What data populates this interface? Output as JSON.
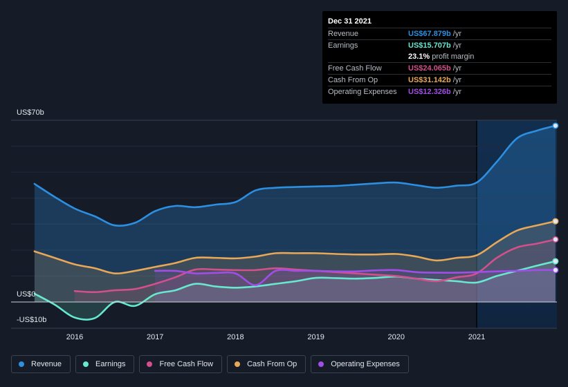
{
  "tooltip": {
    "date": "Dec 31 2021",
    "rows": [
      {
        "label": "Revenue",
        "value": "US$67.879b",
        "unit": "/yr",
        "color": "#2d8fe0"
      },
      {
        "label": "Earnings",
        "value": "US$15.707b",
        "unit": "/yr",
        "color": "#67e8cf"
      },
      {
        "label": "",
        "value": "23.1%",
        "unit": "profit margin",
        "color": "#ffffff"
      },
      {
        "label": "Free Cash Flow",
        "value": "US$24.065b",
        "unit": "/yr",
        "color": "#d2508c"
      },
      {
        "label": "Cash From Op",
        "value": "US$31.142b",
        "unit": "/yr",
        "color": "#e8a857"
      },
      {
        "label": "Operating Expenses",
        "value": "US$12.326b",
        "unit": "/yr",
        "color": "#a14ee8"
      }
    ]
  },
  "chart_data": {
    "type": "area",
    "title": "",
    "ylim": [
      -10,
      70
    ],
    "xlim": [
      2015.5,
      2022.0
    ],
    "y_tick_labels": [
      {
        "value": 70,
        "label": "US$70b"
      },
      {
        "value": 0,
        "label": "US$0"
      },
      {
        "value": -10,
        "label": "-US$10b"
      }
    ],
    "x_tick_labels": [
      {
        "value": 2016,
        "label": "2016"
      },
      {
        "value": 2017,
        "label": "2017"
      },
      {
        "value": 2018,
        "label": "2018"
      },
      {
        "value": 2019,
        "label": "2019"
      },
      {
        "value": 2020,
        "label": "2020"
      },
      {
        "value": 2021,
        "label": "2021"
      }
    ],
    "highlight_start": 2021.0,
    "series": [
      {
        "name": "Revenue",
        "color": "#2d8fe0",
        "points": [
          [
            2015.5,
            45.5
          ],
          [
            2015.75,
            40.5
          ],
          [
            2016.0,
            36.0
          ],
          [
            2016.25,
            33.0
          ],
          [
            2016.5,
            29.5
          ],
          [
            2016.75,
            30.5
          ],
          [
            2017.0,
            35.0
          ],
          [
            2017.25,
            37.0
          ],
          [
            2017.5,
            36.5
          ],
          [
            2017.75,
            37.5
          ],
          [
            2018.0,
            38.5
          ],
          [
            2018.25,
            43.0
          ],
          [
            2018.5,
            44.0
          ],
          [
            2018.75,
            44.3
          ],
          [
            2019.0,
            44.5
          ],
          [
            2019.25,
            44.7
          ],
          [
            2019.5,
            45.2
          ],
          [
            2019.75,
            45.7
          ],
          [
            2020.0,
            46.0
          ],
          [
            2020.25,
            45.0
          ],
          [
            2020.5,
            44.0
          ],
          [
            2020.75,
            44.8
          ],
          [
            2021.0,
            46.0
          ],
          [
            2021.25,
            54.0
          ],
          [
            2021.5,
            63.0
          ],
          [
            2021.75,
            66.0
          ],
          [
            2021.98,
            67.9
          ]
        ]
      },
      {
        "name": "Earnings",
        "color": "#67e8cf",
        "points": [
          [
            2015.5,
            3.2
          ],
          [
            2015.75,
            -1.0
          ],
          [
            2016.0,
            -6.0
          ],
          [
            2016.25,
            -6.2
          ],
          [
            2016.5,
            0.0
          ],
          [
            2016.75,
            -1.5
          ],
          [
            2017.0,
            3.0
          ],
          [
            2017.25,
            4.5
          ],
          [
            2017.5,
            7.0
          ],
          [
            2017.75,
            6.0
          ],
          [
            2018.0,
            5.5
          ],
          [
            2018.25,
            6.0
          ],
          [
            2018.5,
            7.0
          ],
          [
            2018.75,
            8.0
          ],
          [
            2019.0,
            9.3
          ],
          [
            2019.25,
            9.2
          ],
          [
            2019.5,
            9.0
          ],
          [
            2019.75,
            9.3
          ],
          [
            2020.0,
            9.8
          ],
          [
            2020.25,
            9.0
          ],
          [
            2020.5,
            8.5
          ],
          [
            2020.75,
            8.0
          ],
          [
            2021.0,
            7.5
          ],
          [
            2021.25,
            10.0
          ],
          [
            2021.5,
            12.0
          ],
          [
            2021.75,
            14.0
          ],
          [
            2021.98,
            15.7
          ]
        ]
      },
      {
        "name": "Free Cash Flow",
        "color": "#d2508c",
        "points": [
          [
            2016.0,
            4.2
          ],
          [
            2016.25,
            3.8
          ],
          [
            2016.5,
            4.5
          ],
          [
            2016.75,
            5.0
          ],
          [
            2017.0,
            7.0
          ],
          [
            2017.25,
            9.5
          ],
          [
            2017.5,
            12.5
          ],
          [
            2017.75,
            12.5
          ],
          [
            2018.0,
            12.3
          ],
          [
            2018.25,
            12.3
          ],
          [
            2018.5,
            13.0
          ],
          [
            2018.75,
            12.5
          ],
          [
            2019.0,
            12.0
          ],
          [
            2019.25,
            11.5
          ],
          [
            2019.5,
            11.0
          ],
          [
            2019.75,
            10.5
          ],
          [
            2020.0,
            10.0
          ],
          [
            2020.25,
            9.0
          ],
          [
            2020.5,
            8.0
          ],
          [
            2020.75,
            9.5
          ],
          [
            2021.0,
            11.0
          ],
          [
            2021.25,
            17.0
          ],
          [
            2021.5,
            21.0
          ],
          [
            2021.75,
            22.5
          ],
          [
            2021.98,
            24.1
          ]
        ]
      },
      {
        "name": "Cash From Op",
        "color": "#e8a857",
        "points": [
          [
            2015.5,
            19.5
          ],
          [
            2015.75,
            17.0
          ],
          [
            2016.0,
            14.5
          ],
          [
            2016.25,
            13.0
          ],
          [
            2016.5,
            11.0
          ],
          [
            2016.75,
            12.0
          ],
          [
            2017.0,
            13.5
          ],
          [
            2017.25,
            15.0
          ],
          [
            2017.5,
            17.0
          ],
          [
            2017.75,
            17.0
          ],
          [
            2018.0,
            16.8
          ],
          [
            2018.25,
            17.5
          ],
          [
            2018.5,
            18.8
          ],
          [
            2018.75,
            18.8
          ],
          [
            2019.0,
            18.8
          ],
          [
            2019.25,
            18.5
          ],
          [
            2019.5,
            18.3
          ],
          [
            2019.75,
            18.3
          ],
          [
            2020.0,
            18.5
          ],
          [
            2020.25,
            17.5
          ],
          [
            2020.5,
            16.0
          ],
          [
            2020.75,
            17.0
          ],
          [
            2021.0,
            18.0
          ],
          [
            2021.25,
            23.0
          ],
          [
            2021.5,
            27.5
          ],
          [
            2021.75,
            29.5
          ],
          [
            2021.98,
            31.1
          ]
        ]
      },
      {
        "name": "Operating Expenses",
        "color": "#a14ee8",
        "points": [
          [
            2017.0,
            12.0
          ],
          [
            2017.25,
            12.0
          ],
          [
            2017.5,
            11.0
          ],
          [
            2017.75,
            11.2
          ],
          [
            2018.0,
            11.0
          ],
          [
            2018.25,
            6.5
          ],
          [
            2018.5,
            12.0
          ],
          [
            2018.75,
            12.0
          ],
          [
            2019.0,
            12.0
          ],
          [
            2019.25,
            11.8
          ],
          [
            2019.5,
            11.8
          ],
          [
            2019.75,
            12.2
          ],
          [
            2020.0,
            12.3
          ],
          [
            2020.25,
            11.5
          ],
          [
            2020.5,
            11.3
          ],
          [
            2020.75,
            11.3
          ],
          [
            2021.0,
            11.5
          ],
          [
            2021.25,
            11.8
          ],
          [
            2021.5,
            12.0
          ],
          [
            2021.75,
            12.3
          ],
          [
            2021.98,
            12.3
          ]
        ]
      }
    ],
    "legend": [
      "Revenue",
      "Earnings",
      "Free Cash Flow",
      "Cash From Op",
      "Operating Expenses"
    ]
  }
}
